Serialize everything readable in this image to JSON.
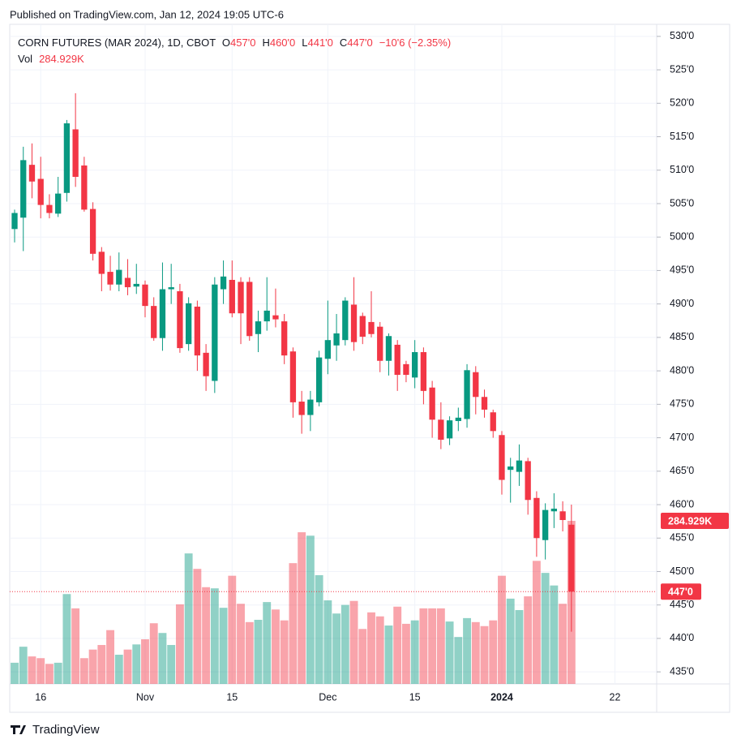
{
  "header": {
    "published": "Published on TradingView.com, Jan 12, 2024 19:05 UTC-6"
  },
  "chart_data": {
    "type": "candlestick",
    "title": "CORN FUTURES (MAR 2024), 1D, CBOT",
    "legend_items": [
      {
        "key": "O",
        "text": "457'0"
      },
      {
        "key": "H",
        "text": "460'0"
      },
      {
        "key": "L",
        "text": "441'0"
      },
      {
        "key": "C",
        "text": "447'0"
      },
      {
        "key": null,
        "text": "−10'6 (−2.35%)"
      }
    ],
    "up_color": "#089981",
    "down_color": "#f23645",
    "open": [
      501.2,
      502.9,
      510.8,
      508.7,
      504.8,
      503.5,
      506.6,
      516.1,
      510.7,
      504.2,
      497.8,
      494.8,
      492.9,
      493.9,
      492.6,
      492.9,
      489.7,
      484.9,
      492.2,
      491.9,
      484,
      489.6,
      482.7,
      478.5,
      492.2,
      493.6,
      493.3,
      493.3,
      485.5,
      487.4,
      488.3,
      487.4,
      482.9,
      475.4,
      473.4,
      475.3,
      481.8,
      483.8,
      484.6,
      489.9,
      488.2,
      487.3,
      486.6,
      481.5,
      483.9,
      481,
      479,
      482.8,
      477.5,
      472.7,
      469.9,
      472.5,
      472.8,
      479.8,
      476.1,
      473.8,
      470.4,
      465.2,
      464.9,
      466.5,
      461,
      454.7,
      459,
      459,
      457
    ],
    "high": [
      504.1,
      513.5,
      514,
      512,
      506.4,
      509,
      517.5,
      521.5,
      512,
      505.2,
      498.5,
      497.2,
      497.7,
      496.7,
      496,
      493.5,
      491,
      496.2,
      496,
      493,
      491,
      490.5,
      484,
      494,
      496.5,
      496.5,
      494,
      494,
      489,
      494,
      492.3,
      488.5,
      483.5,
      477,
      477,
      483,
      490.5,
      488.5,
      491,
      494,
      488.7,
      491.9,
      487.3,
      485.6,
      484.6,
      481.5,
      484.6,
      483.5,
      478.5,
      475.3,
      473.2,
      474.5,
      481,
      480.7,
      477.2,
      474.2,
      471,
      467,
      469,
      467,
      462,
      460.2,
      461.7,
      460.5,
      460
    ],
    "low": [
      499.2,
      497.9,
      505.8,
      502.8,
      502.8,
      503,
      505.3,
      507.5,
      503.8,
      496.5,
      491.9,
      492,
      491.9,
      491.3,
      491.5,
      488,
      484.5,
      483,
      490,
      482.7,
      483,
      480,
      477,
      476.7,
      490,
      488,
      484,
      484.5,
      482.8,
      486,
      486.5,
      481,
      473,
      470.6,
      471,
      474.7,
      479.5,
      481.5,
      483.8,
      483,
      484,
      485,
      479.8,
      479.3,
      477,
      478.3,
      477.4,
      475,
      470,
      468.3,
      468.9,
      471,
      471.5,
      473.5,
      473,
      470,
      461.5,
      460.3,
      462.8,
      458.5,
      452.2,
      451.8,
      456.5,
      456,
      441
    ],
    "close": [
      503.6,
      511.5,
      508.3,
      504.8,
      503.6,
      506.5,
      517,
      509,
      504.1,
      497.5,
      494.5,
      492.9,
      495.1,
      492.5,
      493,
      489.7,
      484.9,
      492.2,
      492.5,
      483.4,
      490.1,
      482.3,
      479.2,
      492.9,
      494.1,
      488.6,
      488.6,
      485.2,
      487.4,
      489,
      487.7,
      482.3,
      475.3,
      473.4,
      475.7,
      482,
      484.6,
      485.6,
      490.5,
      484.3,
      485.1,
      485.5,
      481.5,
      485.2,
      479.4,
      479.4,
      482.8,
      477,
      472.7,
      469.7,
      472.6,
      473,
      480.1,
      476.1,
      474.2,
      471,
      463.7,
      465.7,
      466.6,
      460.7,
      455,
      459.2,
      459.4,
      457.7,
      447
    ],
    "close_label": "447'0",
    "volume": {
      "name": "Vol",
      "up_color": "rgba(8,153,129,0.45)",
      "down_color": "rgba(242,54,69,0.45)",
      "values": [
        37,
        65,
        48,
        45,
        35,
        37,
        157,
        132,
        45,
        60,
        68,
        94,
        51,
        60,
        69,
        78,
        106,
        89,
        68,
        139,
        228,
        201,
        169,
        167,
        133,
        189,
        140,
        108,
        112,
        143,
        130,
        111,
        211,
        265,
        259,
        190,
        146,
        123,
        138,
        145,
        96,
        125,
        118,
        102,
        135,
        105,
        111,
        132,
        132,
        132,
        109,
        82,
        115,
        108,
        101,
        111,
        189,
        149,
        129,
        153,
        215,
        194,
        172,
        140,
        284.929
      ],
      "last_label": "284.929K"
    },
    "ylim": [
      433.2,
      531.8
    ],
    "yticks": [
      {
        "value": 435,
        "label": "435'0"
      },
      {
        "value": 440,
        "label": "440'0"
      },
      {
        "value": 445,
        "label": "445'0"
      },
      {
        "value": 450,
        "label": "450'0"
      },
      {
        "value": 455,
        "label": "455'0"
      },
      {
        "value": 460,
        "label": "460'0"
      },
      {
        "value": 465,
        "label": "465'0"
      },
      {
        "value": 470,
        "label": "470'0"
      },
      {
        "value": 475,
        "label": "475'0"
      },
      {
        "value": 480,
        "label": "480'0"
      },
      {
        "value": 485,
        "label": "485'0"
      },
      {
        "value": 490,
        "label": "490'0"
      },
      {
        "value": 495,
        "label": "495'0"
      },
      {
        "value": 500,
        "label": "500'0"
      },
      {
        "value": 505,
        "label": "505'0"
      },
      {
        "value": 510,
        "label": "510'0"
      },
      {
        "value": 515,
        "label": "515'0"
      },
      {
        "value": 520,
        "label": "520'0"
      },
      {
        "value": 525,
        "label": "525'0"
      },
      {
        "value": 530,
        "label": "530'0"
      }
    ],
    "xlim": [
      -0.56,
      73.8
    ],
    "xticks": [
      {
        "value": 3,
        "label": "16"
      },
      {
        "value": 15,
        "label": "Nov"
      },
      {
        "value": 25,
        "label": "15"
      },
      {
        "value": 36,
        "label": "Dec"
      },
      {
        "value": 46,
        "label": "15"
      },
      {
        "value": 56,
        "label": "2024"
      },
      {
        "value": 69,
        "label": "22"
      }
    ],
    "grid": true
  },
  "footer": {
    "brand": "TradingView"
  }
}
